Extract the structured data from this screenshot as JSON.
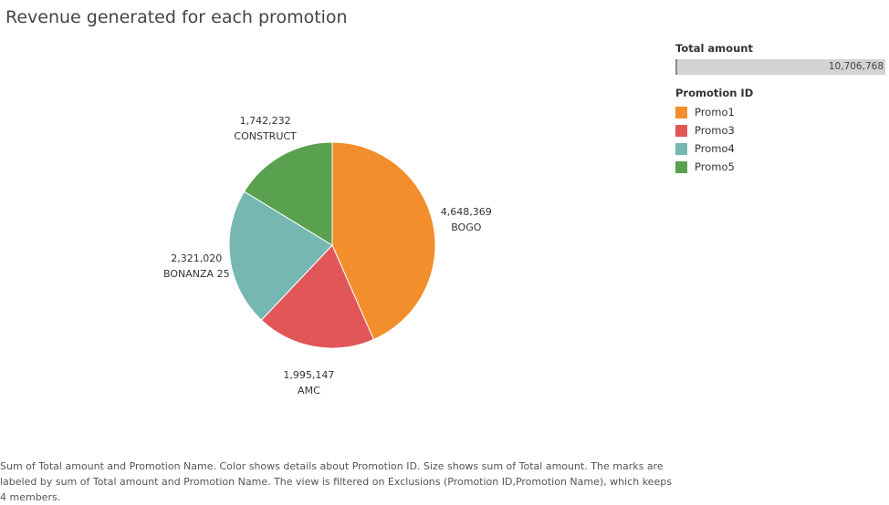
{
  "chart_data": {
    "type": "pie",
    "title": "Revenue generated for each promotion",
    "slices": [
      {
        "name": "BOGO",
        "promotion_id": "Promo1",
        "value": 4648369,
        "value_label": "4,648,369",
        "color": "#F28E2B"
      },
      {
        "name": "AMC",
        "promotion_id": "Promo3",
        "value": 1995147,
        "value_label": "1,995,147",
        "color": "#E15759"
      },
      {
        "name": "BONANZA 25",
        "promotion_id": "Promo4",
        "value": 2321020,
        "value_label": "2,321,020",
        "color": "#76B7B2"
      },
      {
        "name": "CONSTRUCT",
        "promotion_id": "Promo5",
        "value": 1742232,
        "value_label": "1,742,232",
        "color": "#59A14F"
      }
    ],
    "size_legend": {
      "title": "Total amount",
      "max_label": "10,706,768"
    },
    "color_legend": {
      "title": "Promotion ID",
      "items": [
        {
          "label": "Promo1",
          "color": "#F28E2B"
        },
        {
          "label": "Promo3",
          "color": "#E15759"
        },
        {
          "label": "Promo4",
          "color": "#76B7B2"
        },
        {
          "label": "Promo5",
          "color": "#59A14F"
        }
      ]
    }
  },
  "caption": "Sum of Total amount and Promotion Name.  Color shows details about Promotion ID.  Size shows sum of Total amount.  The marks are labeled by sum of Total amount and Promotion Name. The view is filtered on Exclusions (Promotion ID,Promotion Name), which keeps 4 members."
}
